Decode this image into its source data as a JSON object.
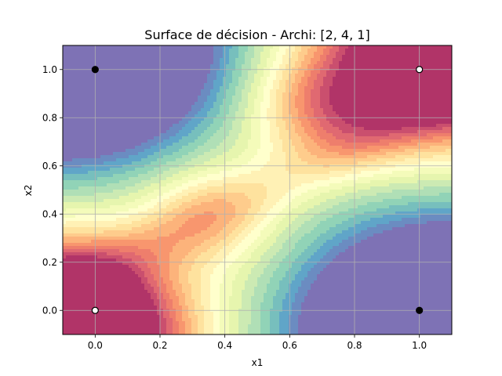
{
  "chart_data": {
    "type": "heatmap",
    "title": "Surface de décision - Archi: [2, 4, 1]",
    "xlabel": "x1",
    "ylabel": "x2",
    "xlim": [
      -0.1,
      1.1
    ],
    "ylim": [
      -0.1,
      1.1
    ],
    "xticks": [
      "0.0",
      "0.2",
      "0.4",
      "0.6",
      "0.8",
      "1.0"
    ],
    "yticks": [
      "0.0",
      "0.2",
      "0.4",
      "0.6",
      "0.8",
      "1.0"
    ],
    "grid": true,
    "colormap": "Spectral",
    "points": [
      {
        "x": 0,
        "y": 0,
        "class": 0,
        "color": "#ffffff"
      },
      {
        "x": 0,
        "y": 1,
        "class": 1,
        "color": "#000000"
      },
      {
        "x": 1,
        "y": 0,
        "class": 1,
        "color": "#000000"
      },
      {
        "x": 1,
        "y": 1,
        "class": 0,
        "color": "#ffffff"
      }
    ],
    "low_regions": [
      "top-left",
      "bottom-right"
    ],
    "high_regions": [
      "bottom-left",
      "top-right"
    ]
  }
}
